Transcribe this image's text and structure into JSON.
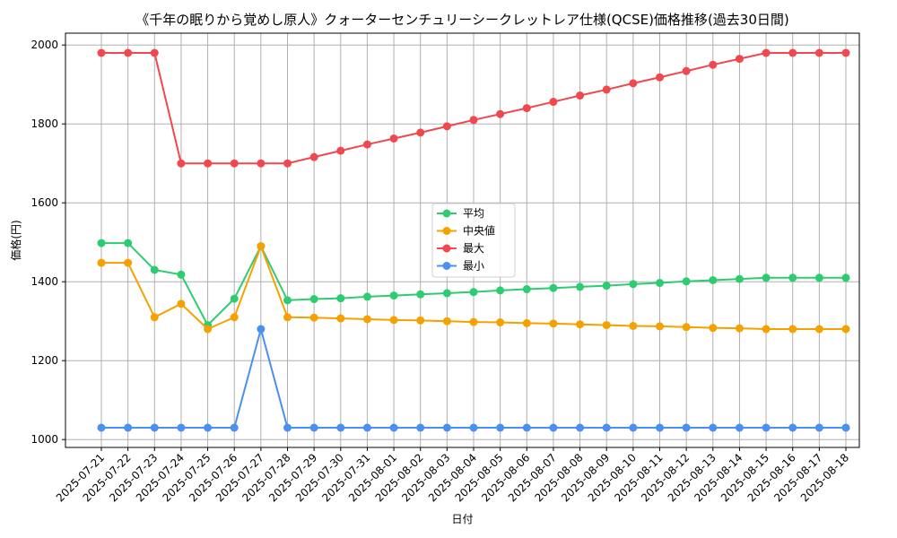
{
  "chart_data": {
    "type": "line",
    "title": "《千年の眠りから覚めし原人》クォーターセンチュリーシークレットレア仕様(QCSE)価格推移(過去30日間)",
    "xlabel": "日付",
    "ylabel": "価格(円)",
    "ylim": [
      980,
      2030
    ],
    "yticks": [
      1000,
      1200,
      1400,
      1600,
      1800,
      2000
    ],
    "grid": true,
    "legend_position": "center",
    "categories": [
      "2025-07-21",
      "2025-07-22",
      "2025-07-23",
      "2025-07-24",
      "2025-07-25",
      "2025-07-26",
      "2025-07-27",
      "2025-07-28",
      "2025-07-29",
      "2025-07-30",
      "2025-07-31",
      "2025-08-01",
      "2025-08-02",
      "2025-08-03",
      "2025-08-04",
      "2025-08-05",
      "2025-08-06",
      "2025-08-07",
      "2025-08-08",
      "2025-08-09",
      "2025-08-10",
      "2025-08-11",
      "2025-08-12",
      "2025-08-13",
      "2025-08-14",
      "2025-08-15",
      "2025-08-16",
      "2025-08-17",
      "2025-08-18"
    ],
    "series": [
      {
        "name": "平均",
        "color": "#2ecc71",
        "values": [
          1498,
          1498,
          1430,
          1418,
          1290,
          1357,
          1490,
          1353,
          1356,
          1358,
          1362,
          1365,
          1368,
          1371,
          1374,
          1378,
          1381,
          1384,
          1387,
          1390,
          1394,
          1397,
          1401,
          1404,
          1407,
          1410,
          1410,
          1410,
          1410
        ]
      },
      {
        "name": "中央値",
        "color": "#f5a100",
        "values": [
          1448,
          1448,
          1310,
          1344,
          1280,
          1310,
          1490,
          1310,
          1309,
          1307,
          1305,
          1303,
          1302,
          1300,
          1298,
          1297,
          1295,
          1294,
          1292,
          1290,
          1288,
          1287,
          1285,
          1283,
          1282,
          1280,
          1280,
          1280,
          1280
        ]
      },
      {
        "name": "最大",
        "color": "#f0484e",
        "values": [
          1980,
          1980,
          1980,
          1700,
          1700,
          1700,
          1700,
          1700,
          1716,
          1732,
          1748,
          1763,
          1778,
          1794,
          1810,
          1825,
          1840,
          1856,
          1872,
          1887,
          1903,
          1918,
          1934,
          1950,
          1965,
          1980,
          1980,
          1980,
          1980
        ]
      },
      {
        "name": "最小",
        "color": "#4a90f0",
        "values": [
          1030,
          1030,
          1030,
          1030,
          1030,
          1030,
          1280,
          1030,
          1030,
          1030,
          1030,
          1030,
          1030,
          1030,
          1030,
          1030,
          1030,
          1030,
          1030,
          1030,
          1030,
          1030,
          1030,
          1030,
          1030,
          1030,
          1030,
          1030,
          1030
        ]
      }
    ]
  }
}
